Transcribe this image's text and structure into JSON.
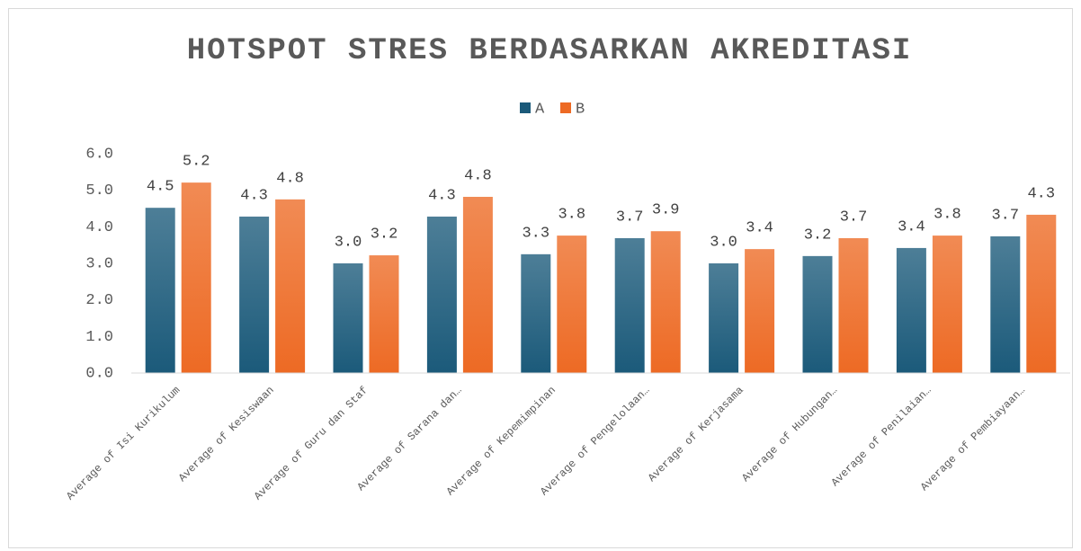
{
  "chart_data": {
    "type": "bar",
    "title": "HOTSPOT STRES BERDASARKAN AKREDITASI",
    "categories": [
      "Average of Isi Kurikulum",
      "Average of Kesiswaan",
      "Average of Guru dan Staf",
      "Average of Sarana dan…",
      "Average of Kepemimpinan",
      "Average of Pengelolaan…",
      "Average of Kerjasama",
      "Average of Hubungan…",
      "Average of Penilaian…",
      "Average of Pembiayaan…"
    ],
    "series": [
      {
        "name": "A",
        "color": "#1b5a7a",
        "values": [
          4.52,
          4.28,
          3.0,
          4.28,
          3.25,
          3.69,
          3.0,
          3.2,
          3.42,
          3.74
        ],
        "value_labels": [
          "4.5",
          "4.3",
          "3.0",
          "4.3",
          "3.3",
          "3.7",
          "3.0",
          "3.2",
          "3.4",
          "3.7"
        ]
      },
      {
        "name": "B",
        "color": "#ed6a24",
        "values": [
          5.21,
          4.75,
          3.22,
          4.82,
          3.76,
          3.88,
          3.39,
          3.69,
          3.76,
          4.33
        ],
        "value_labels": [
          "5.2",
          "4.8",
          "3.2",
          "4.8",
          "3.8",
          "3.9",
          "3.4",
          "3.7",
          "3.8",
          "4.3"
        ]
      }
    ],
    "ylim": [
      0,
      6
    ],
    "yticks": [
      {
        "value": 0,
        "label": "0.0"
      },
      {
        "value": 1,
        "label": "1.0"
      },
      {
        "value": 2,
        "label": "2.0"
      },
      {
        "value": 3,
        "label": "3.0"
      },
      {
        "value": 4,
        "label": "4.0"
      },
      {
        "value": 5,
        "label": "5.0"
      },
      {
        "value": 6,
        "label": "6.0"
      }
    ],
    "legend": "top"
  }
}
